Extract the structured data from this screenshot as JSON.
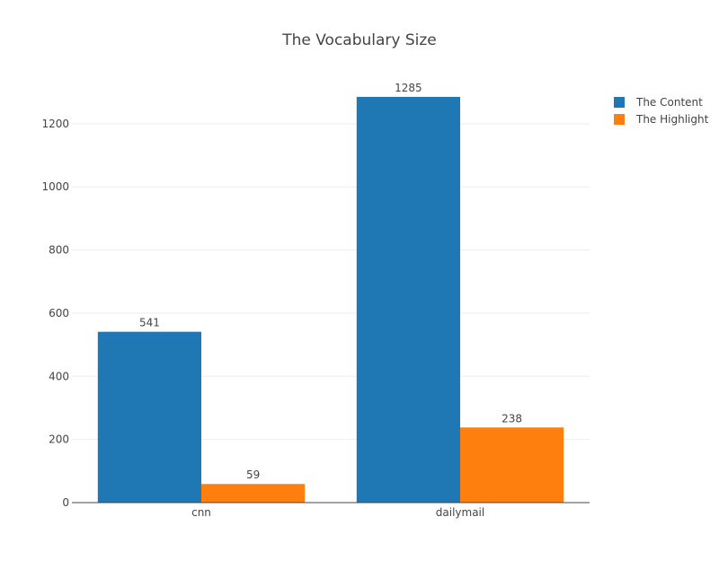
{
  "chart_data": {
    "type": "bar",
    "title": "The Vocabulary Size",
    "xlabel": "",
    "ylabel": "",
    "categories": [
      "cnn",
      "dailymail"
    ],
    "series": [
      {
        "name": "The Content",
        "color": "#1f77b4",
        "values": [
          541,
          1285
        ]
      },
      {
        "name": "The Highlight",
        "color": "#ff7f0e",
        "values": [
          59,
          238
        ]
      }
    ],
    "ylim": [
      0,
      1353
    ],
    "yticks": [
      0,
      200,
      400,
      600,
      800,
      1000,
      1200
    ],
    "grid": true,
    "legend_position": "top-right",
    "data_labels": true
  }
}
